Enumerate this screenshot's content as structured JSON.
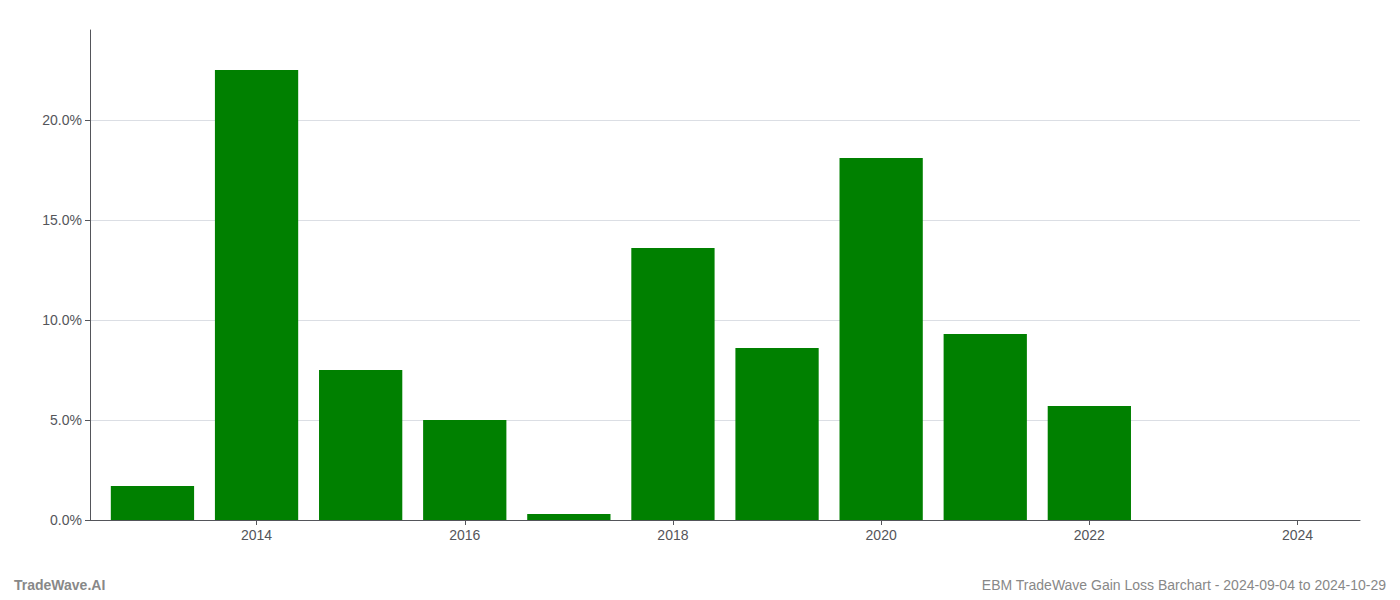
{
  "chart_data": {
    "type": "bar",
    "x": [
      2013,
      2014,
      2015,
      2016,
      2017,
      2018,
      2019,
      2020,
      2021,
      2022,
      2023
    ],
    "values": [
      0.017,
      0.225,
      0.075,
      0.05,
      0.003,
      0.136,
      0.086,
      0.181,
      0.093,
      0.057,
      0.0
    ],
    "color": "#008000",
    "xlim": [
      2012.4,
      2024.6
    ],
    "xticks": [
      2014,
      2016,
      2018,
      2020,
      2022,
      2024
    ],
    "ylim": [
      0,
      0.245
    ],
    "yticks": [
      {
        "value": 0.0,
        "label": "0.0%"
      },
      {
        "value": 0.05,
        "label": "5.0%"
      },
      {
        "value": 0.1,
        "label": "10.0%"
      },
      {
        "value": 0.15,
        "label": "15.0%"
      },
      {
        "value": 0.2,
        "label": "20.0%"
      }
    ],
    "grid": true,
    "annotations": [
      "TradeWave.AI",
      "EBM TradeWave Gain Loss Barchart - 2024-09-04 to 2024-10-29"
    ]
  }
}
